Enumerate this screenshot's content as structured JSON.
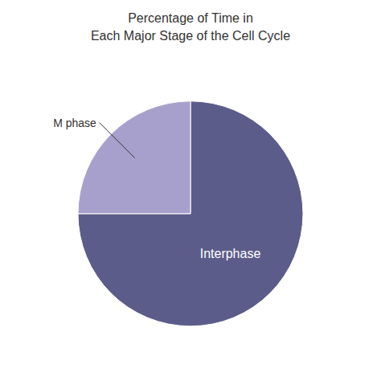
{
  "chart_data": {
    "type": "pie",
    "title": "Percentage of Time in\nEach Major Stage of the Cell Cycle",
    "categories": [
      "Interphase",
      "M phase"
    ],
    "values": [
      75,
      25
    ],
    "colors": [
      "#5c5c8a",
      "#a8a0cc"
    ]
  }
}
